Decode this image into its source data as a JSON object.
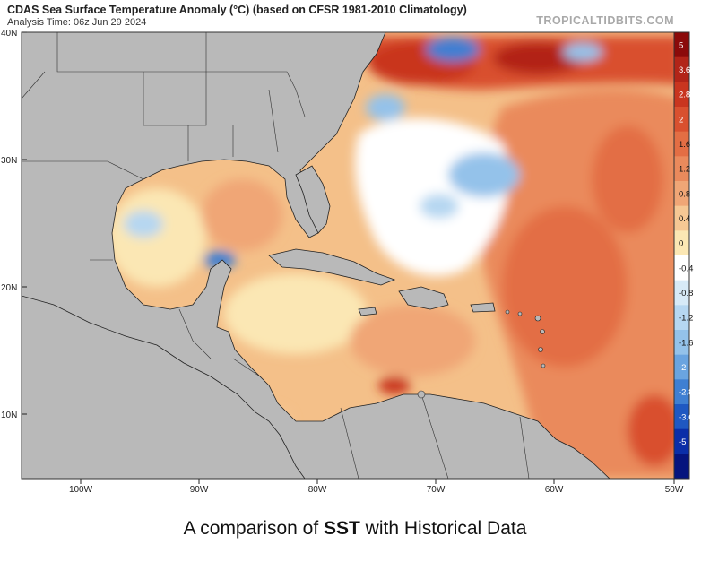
{
  "header": {
    "title": "CDAS Sea Surface Temperature Anomaly (°C) (based on CFSR 1981-2010 Climatology)",
    "analysis_time": "Analysis Time: 06z Jun 29 2024",
    "brand": "TROPICALTIDBITS.COM"
  },
  "axes": {
    "lat_labels": [
      "40N",
      "30N",
      "20N",
      "10N"
    ],
    "lon_labels": [
      "100W",
      "90W",
      "80W",
      "70W",
      "60W",
      "50W"
    ]
  },
  "legend": {
    "ticks": [
      "5",
      "3.6",
      "2.8",
      "2",
      "1.6",
      "1.2",
      "0.8",
      "0.4",
      "0",
      "-0.4",
      "-0.8",
      "-1.2",
      "-1.6",
      "-2",
      "-2.8",
      "-3.6",
      "-5"
    ],
    "colors": [
      "#8b0a0a",
      "#b22418",
      "#c9351f",
      "#d9502f",
      "#e36e44",
      "#ea8a5c",
      "#f0a676",
      "#f6c894",
      "#fbe7b4",
      "#ffffff",
      "#d7eaf7",
      "#b6d7f1",
      "#94c2ea",
      "#6aa4e0",
      "#3f7fd2",
      "#1f58c2",
      "#0a2ea8",
      "#05147e"
    ]
  },
  "caption": {
    "prefix": "A comparison of ",
    "bold": "SST",
    "suffix": " with Historical Data"
  }
}
